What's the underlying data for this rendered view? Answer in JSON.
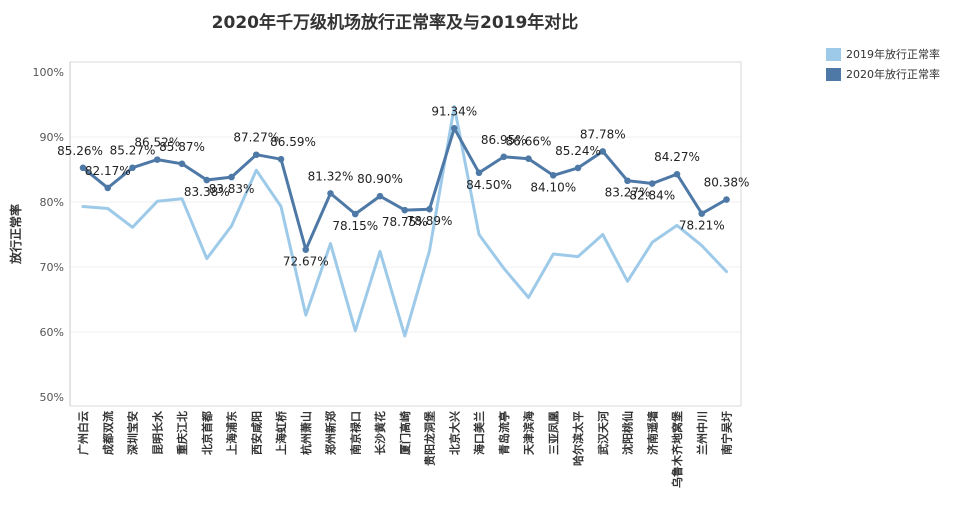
{
  "chart_data": {
    "type": "line",
    "title": "2020年千万级机场放行正常率及与2019年对比",
    "ylabel": "放行正常率",
    "ylim": [
      0.5,
      1.0
    ],
    "yticks": [
      "50%",
      "60%",
      "70%",
      "80%",
      "90%",
      "100%"
    ],
    "grid": true,
    "legend_position": "right",
    "categories": [
      "广州白云",
      "成都双流",
      "深圳宝安",
      "昆明长水",
      "重庆江北",
      "北京首都",
      "上海浦东",
      "西安咸阳",
      "上海虹桥",
      "杭州萧山",
      "郑州新郑",
      "南京禄口",
      "长沙黄花",
      "厦门高崎",
      "贵阳龙洞堡",
      "北京大兴",
      "海口美兰",
      "青岛流亭",
      "天津滨海",
      "三亚凤凰",
      "哈尔滨太平",
      "武汉天河",
      "沈阳桃仙",
      "济南遥墙",
      "乌鲁木齐地窝堡",
      "兰州中川",
      "南宁吴圩"
    ],
    "series": [
      {
        "name": "2019年放行正常率",
        "color": "#9ecae9",
        "values": [
          0.793,
          0.79,
          0.761,
          0.801,
          0.805,
          0.713,
          0.763,
          0.849,
          0.793,
          0.626,
          0.736,
          0.602,
          0.724,
          0.594,
          0.725,
          0.947,
          0.75,
          0.698,
          0.653,
          0.72,
          0.716,
          0.75,
          0.678,
          0.738,
          0.764,
          0.733,
          0.693
        ],
        "labels": []
      },
      {
        "name": "2020年放行正常率",
        "color": "#4e79a7",
        "values": [
          0.8526,
          0.8217,
          0.8527,
          0.8652,
          0.8587,
          0.8338,
          0.8383,
          0.8727,
          0.8659,
          0.7267,
          0.8132,
          0.7815,
          0.809,
          0.7875,
          0.7889,
          0.9134,
          0.845,
          0.8695,
          0.8666,
          0.841,
          0.8524,
          0.8778,
          0.8327,
          0.8284,
          0.8427,
          0.7821,
          0.8038
        ],
        "labels": [
          "85.26%",
          "82.17%",
          "85.27%",
          "86.52%",
          "85.87%",
          "83.38%",
          "83.83%",
          "87.27%",
          "86.59%",
          "72.67%",
          "81.32%",
          "78.15%",
          "80.90%",
          "78.75%",
          "78.89%",
          "91.34%",
          "84.50%",
          "86.95%",
          "86.66%",
          "84.10%",
          "85.24%",
          "87.78%",
          "83.27%",
          "82.84%",
          "84.27%",
          "78.21%",
          "80.38%"
        ]
      }
    ]
  }
}
